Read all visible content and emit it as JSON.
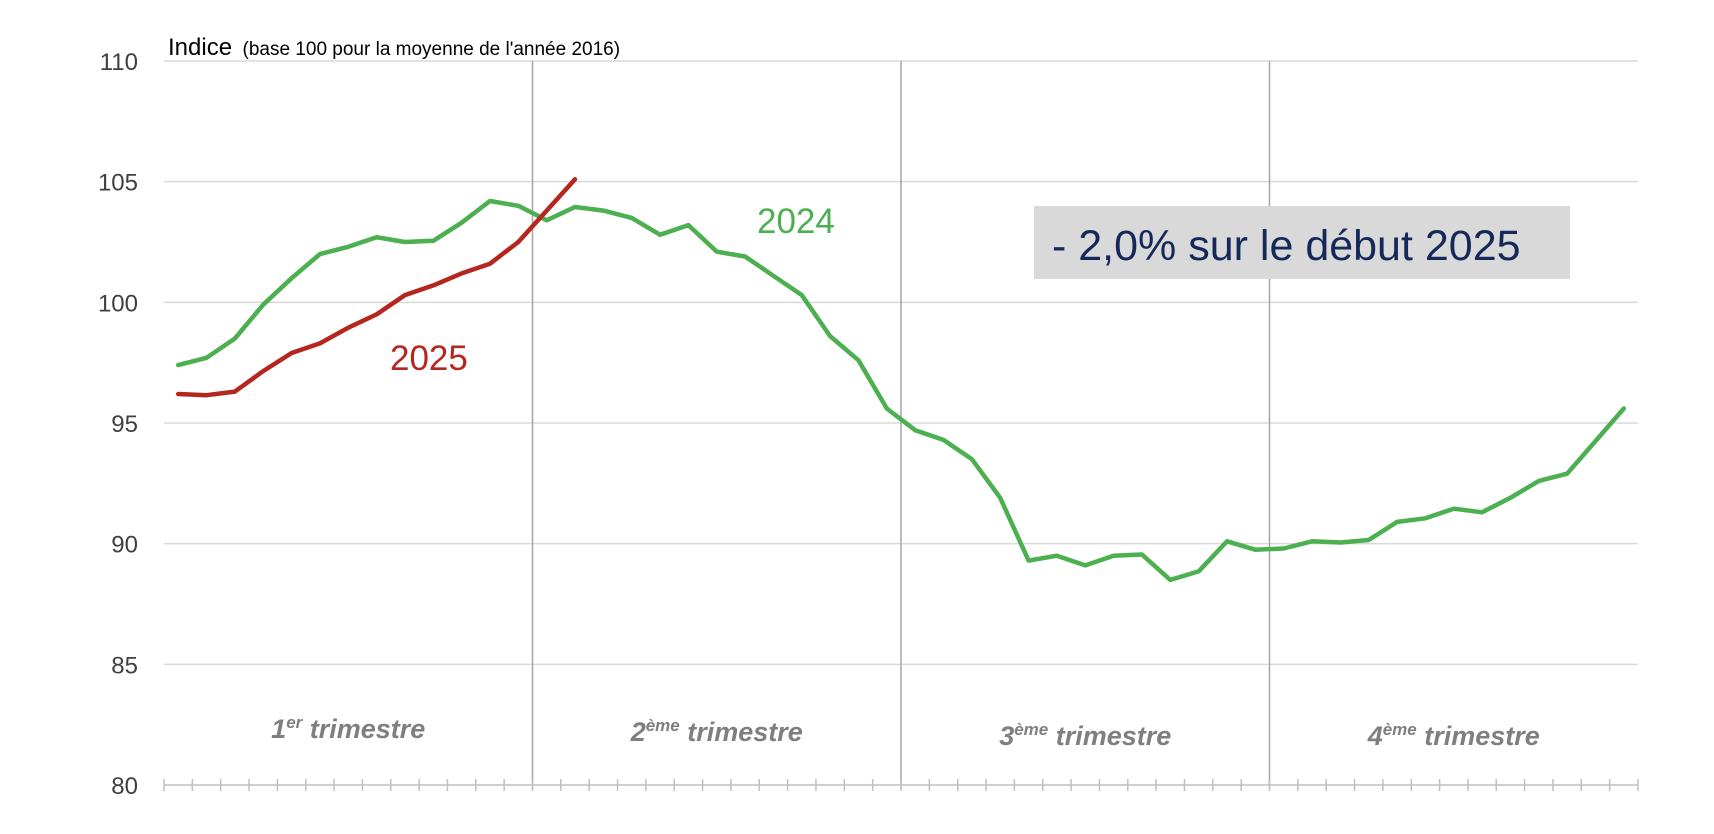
{
  "chart_data": {
    "type": "line",
    "ylabel_main": "Indice",
    "ylabel_sub": "(base 100 pour la moyenne de l'année 2016)",
    "ylim": [
      80,
      110
    ],
    "yticks": [
      "80",
      "85",
      "90",
      "95",
      "100",
      "105",
      "110"
    ],
    "grid": true,
    "x_count": 52,
    "quarters": [
      {
        "num": "1",
        "sup": "er",
        "label": " trimestre"
      },
      {
        "num": "2",
        "sup": "ème",
        "label": " trimestre"
      },
      {
        "num": "3",
        "sup": "ème",
        "label": " trimestre"
      },
      {
        "num": "4",
        "sup": "ème",
        "label": " trimestre"
      }
    ],
    "series": [
      {
        "name": "2024",
        "color": "#4caf50",
        "values": [
          97.4,
          97.7,
          98.5,
          99.9,
          101.0,
          102.0,
          102.3,
          102.7,
          102.5,
          102.55,
          103.3,
          104.2,
          104.0,
          103.4,
          103.95,
          103.8,
          103.5,
          102.8,
          103.2,
          102.1,
          101.9,
          101.1,
          100.3,
          98.6,
          97.6,
          95.6,
          94.7,
          94.3,
          93.5,
          91.9,
          89.3,
          89.5,
          89.1,
          89.5,
          89.55,
          88.5,
          88.85,
          90.1,
          89.75,
          89.8,
          90.1,
          90.05,
          90.15,
          90.9,
          91.05,
          91.45,
          91.3,
          91.9,
          92.6,
          92.9,
          94.25,
          95.6
        ]
      },
      {
        "name": "2025",
        "color": "#b5271e",
        "values": [
          96.2,
          96.15,
          96.3,
          97.15,
          97.9,
          98.3,
          98.95,
          99.5,
          100.3,
          100.7,
          101.2,
          101.6,
          102.5,
          103.8,
          105.1
        ]
      }
    ],
    "annotation": "- 2,0% sur le début 2025",
    "annotation_color": "#14285a",
    "annotation_bg": "#d9d9d9"
  }
}
